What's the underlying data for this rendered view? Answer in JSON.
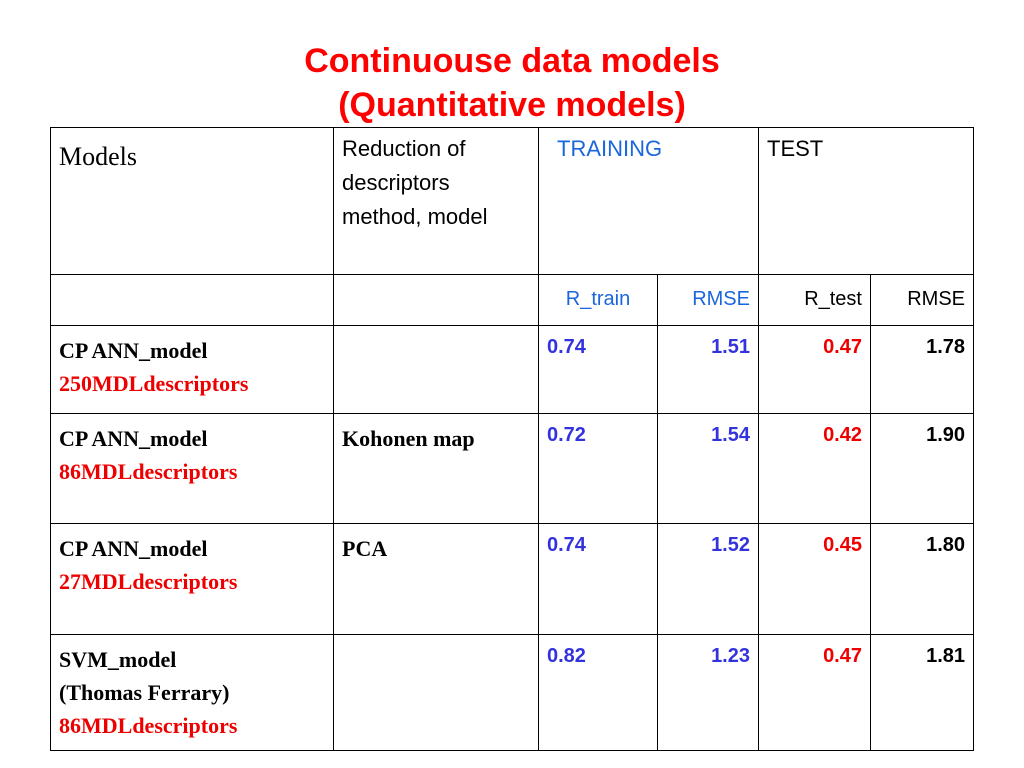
{
  "title": [
    "Continuouse data models",
    "(Quantitative models)"
  ],
  "table": {
    "header": [
      "Models",
      "Reduction of descriptors method, model",
      "TRAINING",
      "TEST"
    ],
    "subheader": [
      "R_train",
      "RMSE",
      "R_test",
      "RMSE"
    ],
    "rows": [
      {
        "model": [
          "CP ANN_model"
        ],
        "descriptors": "250MDLdescriptors",
        "r_train": "0.74",
        "rmse_train": "1.51",
        "r_test": "0.47",
        "rmse_test": "1.78"
      },
      {
        "model": [
          "CP ANN_model"
        ],
        "descriptors": "86MDLdescriptors",
        "reduction": "Kohonen map",
        "r_train": "0.72",
        "rmse_train": "1.54",
        "r_test": "0.42",
        "rmse_test": "1.90"
      },
      {
        "model": [
          "CP ANN_model"
        ],
        "descriptors": "27MDLdescriptors",
        "reduction": "PCA",
        "r_train": "0.74",
        "rmse_train": "1.52",
        "r_test": "0.45",
        "rmse_test": "1.80"
      },
      {
        "model": [
          "SVM_model",
          "(Thomas Ferrary)"
        ],
        "descriptors": "86MDLdescriptors",
        "r_train": "0.82",
        "rmse_train": "1.23",
        "r_test": "0.47",
        "rmse_test": "1.81"
      }
    ]
  }
}
